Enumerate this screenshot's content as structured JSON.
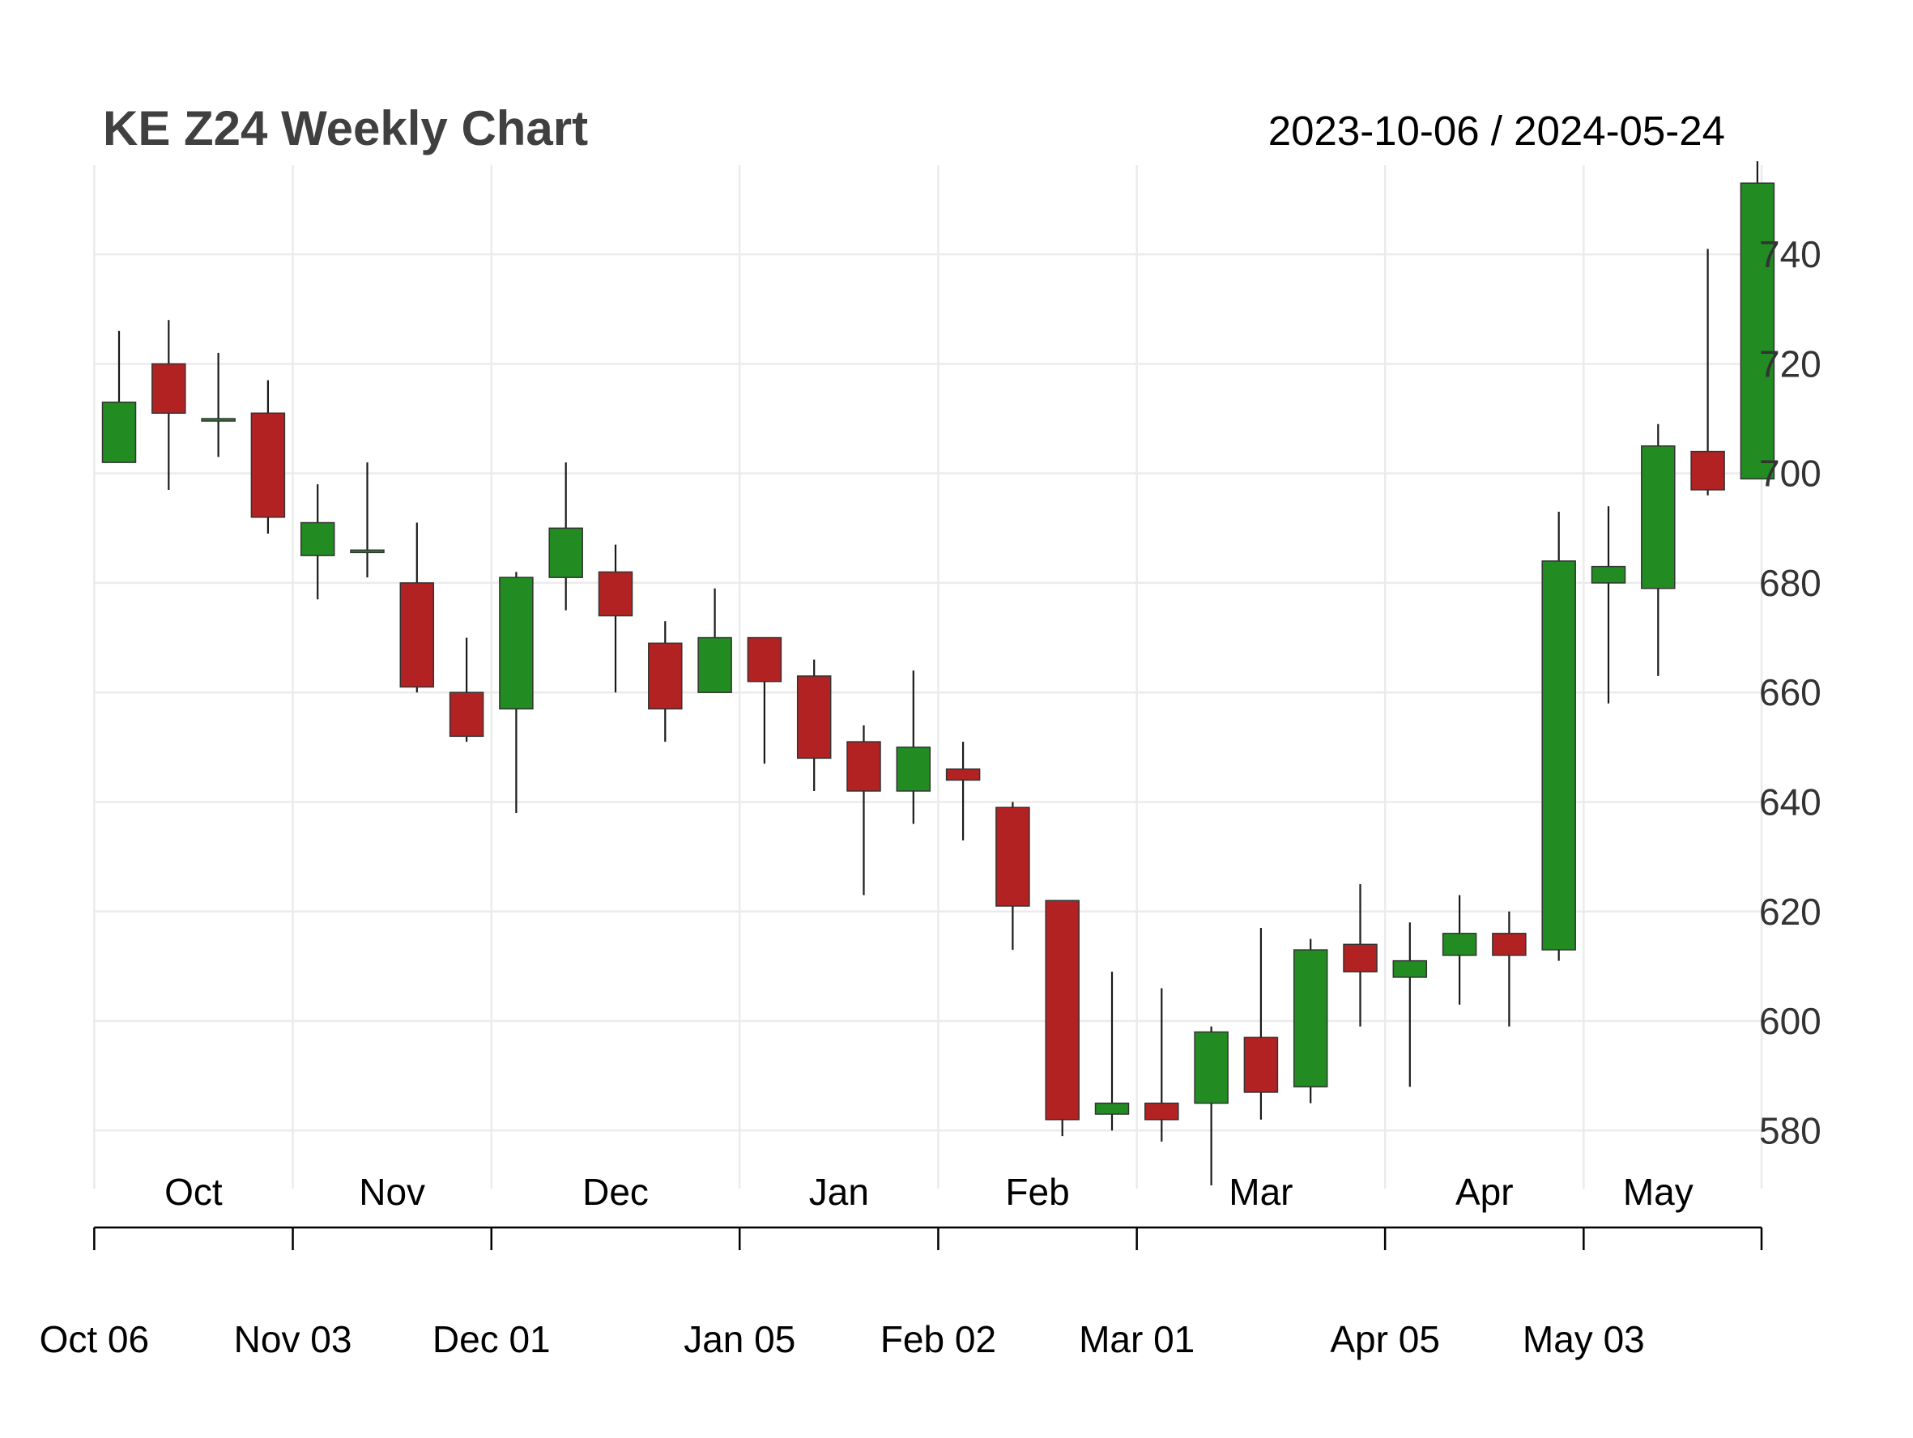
{
  "chart_title": "KE Z24 Weekly Chart",
  "date_range": "2023-10-06 / 2024-05-24",
  "colors": {
    "up": "#228B22",
    "down": "#B22222",
    "grid": "#EBEBEB",
    "title": "#404040"
  },
  "chart_data": {
    "type": "candlestick",
    "title": "KE Z24 Weekly Chart",
    "ylim": [
      570,
      757
    ],
    "y_ticks": [
      580,
      600,
      620,
      640,
      660,
      680,
      700,
      720,
      740
    ],
    "grid": true,
    "y_axis_position": "right",
    "month_labels": [
      {
        "label": "Oct",
        "x": 1.5
      },
      {
        "label": "Nov",
        "x": 5.5
      },
      {
        "label": "Dec",
        "x": 10
      },
      {
        "label": "Jan",
        "x": 14.5
      },
      {
        "label": "Feb",
        "x": 18.5
      },
      {
        "label": "Mar",
        "x": 23
      },
      {
        "label": "Apr",
        "x": 27.5
      },
      {
        "label": "May",
        "x": 31
      }
    ],
    "x_tick_labels": [
      {
        "label": "Oct 06",
        "x": -0.5
      },
      {
        "label": "Nov 03",
        "x": 3.5
      },
      {
        "label": "Dec 01",
        "x": 7.5
      },
      {
        "label": "Jan 05",
        "x": 12.5
      },
      {
        "label": "Feb 02",
        "x": 16.5
      },
      {
        "label": "Mar 01",
        "x": 20.5
      },
      {
        "label": "Apr 05",
        "x": 25.5
      },
      {
        "label": "May 03",
        "x": 29.5
      }
    ],
    "candles": [
      {
        "open": 702,
        "high": 726,
        "low": 702,
        "close": 713
      },
      {
        "open": 720,
        "high": 728,
        "low": 697,
        "close": 711
      },
      {
        "open": 710,
        "high": 722,
        "low": 703,
        "close": 710
      },
      {
        "open": 711,
        "high": 717,
        "low": 689,
        "close": 692
      },
      {
        "open": 685,
        "high": 698,
        "low": 677,
        "close": 691
      },
      {
        "open": 686,
        "high": 702,
        "low": 681,
        "close": 686
      },
      {
        "open": 680,
        "high": 691,
        "low": 660,
        "close": 661
      },
      {
        "open": 660,
        "high": 670,
        "low": 651,
        "close": 652
      },
      {
        "open": 657,
        "high": 682,
        "low": 638,
        "close": 681
      },
      {
        "open": 681,
        "high": 702,
        "low": 675,
        "close": 690
      },
      {
        "open": 682,
        "high": 687,
        "low": 660,
        "close": 674
      },
      {
        "open": 669,
        "high": 673,
        "low": 651,
        "close": 657
      },
      {
        "open": 660,
        "high": 679,
        "low": 660,
        "close": 670
      },
      {
        "open": 670,
        "high": 670,
        "low": 647,
        "close": 662
      },
      {
        "open": 663,
        "high": 666,
        "low": 642,
        "close": 648
      },
      {
        "open": 651,
        "high": 654,
        "low": 623,
        "close": 642
      },
      {
        "open": 642,
        "high": 664,
        "low": 636,
        "close": 650
      },
      {
        "open": 646,
        "high": 651,
        "low": 633,
        "close": 644
      },
      {
        "open": 639,
        "high": 640,
        "low": 613,
        "close": 621
      },
      {
        "open": 622,
        "high": 622,
        "low": 579,
        "close": 582
      },
      {
        "open": 583,
        "high": 609,
        "low": 580,
        "close": 585
      },
      {
        "open": 585,
        "high": 606,
        "low": 578,
        "close": 582
      },
      {
        "open": 585,
        "high": 599,
        "low": 570,
        "close": 598
      },
      {
        "open": 597,
        "high": 617,
        "low": 582,
        "close": 587
      },
      {
        "open": 588,
        "high": 615,
        "low": 585,
        "close": 613
      },
      {
        "open": 614,
        "high": 625,
        "low": 599,
        "close": 609
      },
      {
        "open": 608,
        "high": 618,
        "low": 588,
        "close": 611
      },
      {
        "open": 612,
        "high": 623,
        "low": 603,
        "close": 616
      },
      {
        "open": 616,
        "high": 620,
        "low": 599,
        "close": 612
      },
      {
        "open": 613,
        "high": 693,
        "low": 611,
        "close": 684
      },
      {
        "open": 680,
        "high": 694,
        "low": 658,
        "close": 683
      },
      {
        "open": 679,
        "high": 709,
        "low": 663,
        "close": 705
      },
      {
        "open": 704,
        "high": 741,
        "low": 696,
        "close": 697
      },
      {
        "open": 699,
        "high": 757,
        "low": 699,
        "close": 753
      }
    ]
  }
}
